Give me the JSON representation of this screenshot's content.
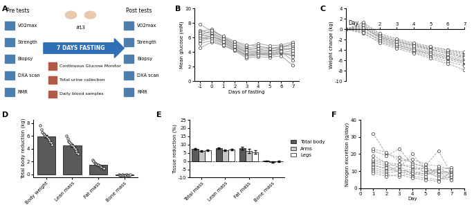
{
  "panel_a": {
    "label": "A",
    "pre_tests": {
      "title": "Pre tests",
      "items": [
        "VO2max",
        "Strength",
        "Biopsy",
        "DXA scan",
        "RMR"
      ]
    },
    "fasting": {
      "label": "7 DAYS FASTING",
      "participants": "#13",
      "measures": [
        "Continuous Glucose Monitor",
        "Total urine collection",
        "Daily blood samples"
      ]
    },
    "post_tests": {
      "title": "Post tests",
      "items": [
        "VO2max",
        "Strength",
        "Biopsy",
        "DXA scan",
        "RMR"
      ]
    }
  },
  "chart_data": [
    {
      "label": "B",
      "type": "line",
      "xlabel": "Days of fasting",
      "ylabel": "Mean glucose (mM)",
      "x": [
        -1,
        0,
        1,
        2,
        3,
        4,
        5,
        6,
        7
      ],
      "xlim": [
        -1.5,
        7.5
      ],
      "xticks": [
        -1,
        0,
        1,
        2,
        3,
        4,
        5,
        6,
        7
      ],
      "ylim": [
        0,
        10
      ],
      "yticks": [
        0,
        2,
        4,
        6,
        8,
        10
      ],
      "color": "#9a9a9a",
      "marker": "circle",
      "line_style": "solid",
      "series": [
        {
          "values": [
            7.0,
            6.6,
            5.9,
            5.2,
            4.6,
            4.8,
            4.6,
            4.5,
            5.3
          ]
        },
        {
          "values": [
            6.2,
            6.5,
            5.6,
            4.7,
            3.9,
            4.0,
            3.8,
            4.2,
            4.0
          ]
        },
        {
          "values": [
            5.5,
            6.0,
            5.3,
            4.6,
            3.5,
            3.7,
            3.5,
            3.8,
            3.6
          ]
        },
        {
          "values": [
            6.8,
            7.2,
            6.0,
            5.4,
            4.8,
            5.2,
            4.9,
            5.0,
            5.4
          ]
        },
        {
          "values": [
            4.6,
            5.4,
            4.9,
            4.2,
            3.2,
            3.4,
            3.3,
            3.5,
            2.2
          ]
        },
        {
          "values": [
            6.4,
            6.1,
            5.7,
            4.9,
            4.1,
            4.3,
            4.2,
            4.4,
            4.6
          ]
        },
        {
          "values": [
            5.9,
            6.3,
            5.4,
            4.5,
            3.7,
            3.9,
            3.6,
            3.9,
            3.8
          ]
        },
        {
          "values": [
            7.8,
            6.9,
            6.1,
            5.0,
            4.4,
            4.6,
            4.4,
            4.7,
            4.9
          ]
        },
        {
          "values": [
            6.0,
            5.8,
            5.2,
            4.4,
            3.6,
            3.8,
            3.7,
            4.0,
            2.9
          ]
        },
        {
          "values": [
            6.6,
            6.7,
            5.8,
            5.1,
            4.3,
            4.5,
            4.1,
            4.3,
            4.5
          ]
        },
        {
          "values": [
            5.2,
            5.6,
            5.0,
            4.3,
            3.4,
            3.6,
            3.9,
            4.1,
            3.4
          ]
        },
        {
          "values": [
            6.3,
            7.0,
            6.2,
            5.5,
            5.0,
            4.9,
            4.5,
            4.8,
            5.1
          ]
        },
        {
          "values": [
            5.7,
            6.2,
            5.5,
            4.8,
            4.0,
            4.1,
            4.0,
            4.6,
            4.2
          ]
        }
      ]
    },
    {
      "label": "C",
      "type": "line",
      "xlabel": "Day",
      "ylabel": "Weight change (kg)",
      "x": [
        0,
        1,
        2,
        3,
        4,
        5,
        6,
        7
      ],
      "xlim": [
        0,
        7
      ],
      "xticks": [
        1,
        2,
        3,
        4,
        5,
        6,
        7
      ],
      "ylim": [
        -10,
        4
      ],
      "yticks": [
        -10,
        -8,
        -6,
        -4,
        -2,
        0,
        2,
        4
      ],
      "color": "#9a9a9a",
      "marker": "circle",
      "line_style": "dashed",
      "series": [
        {
          "values": [
            0,
            1.2,
            -1.0,
            -2.0,
            -2.8,
            -3.4,
            -4.0,
            -4.6
          ]
        },
        {
          "values": [
            0,
            0.6,
            -1.6,
            -2.6,
            -3.3,
            -4.0,
            -4.6,
            -5.3
          ]
        },
        {
          "values": [
            0,
            -0.4,
            -2.0,
            -3.0,
            -3.8,
            -4.5,
            -5.2,
            -6.0
          ]
        },
        {
          "values": [
            0,
            0.2,
            -1.4,
            -2.4,
            -3.0,
            -3.6,
            -4.2,
            -4.8
          ]
        },
        {
          "values": [
            0,
            -0.8,
            -2.4,
            -3.4,
            -4.2,
            -5.0,
            -5.8,
            -6.6
          ]
        },
        {
          "values": [
            0,
            0.9,
            -1.2,
            -2.2,
            -3.0,
            -3.8,
            -4.4,
            -5.1
          ]
        },
        {
          "values": [
            0,
            -0.2,
            -1.9,
            -3.1,
            -4.0,
            -4.8,
            -5.6,
            -6.3
          ]
        },
        {
          "values": [
            0,
            1.4,
            -0.8,
            -1.8,
            -2.6,
            -3.3,
            -3.9,
            -4.4
          ]
        },
        {
          "values": [
            0,
            0.0,
            -2.2,
            -3.3,
            -4.4,
            -5.3,
            -6.2,
            -7.0
          ]
        },
        {
          "values": [
            0,
            0.4,
            -1.5,
            -2.7,
            -3.6,
            -4.3,
            -5.0,
            -5.7
          ]
        },
        {
          "values": [
            0,
            -0.6,
            -2.6,
            -3.7,
            -4.6,
            -5.6,
            -6.6,
            -7.8
          ]
        },
        {
          "values": [
            0,
            0.8,
            -1.3,
            -2.3,
            -3.2,
            -3.9,
            -4.7,
            -5.4
          ]
        },
        {
          "values": [
            0,
            0.3,
            -1.7,
            -2.9,
            -3.9,
            -4.7,
            -5.4,
            -6.2
          ]
        }
      ]
    },
    {
      "label": "D",
      "type": "bar",
      "ylabel": "Total body reduction (kg)",
      "categories": [
        "Body weight",
        "Lean mass",
        "Fat mass",
        "Bone mass"
      ],
      "values": [
        5.9,
        4.5,
        1.5,
        -0.09
      ],
      "errors": [
        0.25,
        0.25,
        0.1,
        0.01
      ],
      "points": [
        [
          7.6,
          7.0,
          6.6,
          6.4,
          6.2,
          6.0,
          5.9,
          5.8,
          5.6,
          5.4,
          5.1,
          4.9,
          4.6
        ],
        [
          6.0,
          5.6,
          5.2,
          5.0,
          4.8,
          4.6,
          4.5,
          4.4,
          4.2,
          4.0,
          3.6,
          3.3,
          3.2
        ],
        [
          2.3,
          2.0,
          1.8,
          1.7,
          1.6,
          1.5,
          1.5,
          1.4,
          1.3,
          1.2,
          1.1,
          1.0,
          1.0
        ],
        [
          -0.05,
          -0.1,
          -0.08,
          -0.12,
          -0.06,
          -0.1,
          -0.09,
          -0.11,
          -0.07,
          -0.1,
          -0.08,
          -0.13,
          -0.06
        ]
      ],
      "color": "#5a5a5a",
      "ylim": [
        -0.5,
        8.5
      ],
      "yticks": [
        0,
        2,
        4,
        6,
        8
      ]
    },
    {
      "label": "E",
      "type": "bar",
      "ylabel": "Tissue reduction (%)",
      "categories": [
        "Total mass",
        "Lean mass",
        "Fat mass",
        "Bone mass"
      ],
      "ylim": [
        -10,
        25
      ],
      "yticks": [
        -10,
        -5,
        0,
        5,
        10,
        15,
        20,
        25
      ],
      "legend": "center left",
      "series": [
        {
          "name": "Total body",
          "color": "#5a5a5a",
          "values": [
            7.3,
            7.8,
            7.9,
            0.1
          ],
          "errors": [
            0.4,
            0.5,
            0.8,
            0.3
          ]
        },
        {
          "name": "Arms",
          "color": "#c8c8c8",
          "values": [
            6.1,
            6.6,
            6.0,
            -0.4
          ],
          "errors": [
            0.5,
            0.5,
            1.2,
            0.4
          ]
        },
        {
          "name": "Legs",
          "color": "#ffffff",
          "values": [
            6.4,
            6.9,
            5.5,
            -0.3
          ],
          "errors": [
            0.4,
            0.4,
            1.0,
            0.4
          ]
        }
      ]
    },
    {
      "label": "F",
      "type": "line",
      "xlabel": "Day",
      "ylabel": "Nitrogen excretion (g/day)",
      "x": [
        1,
        2,
        3,
        4,
        5,
        6,
        7
      ],
      "xlim": [
        0,
        8
      ],
      "xticks": [
        0,
        1,
        2,
        3,
        4,
        5,
        6,
        7,
        8
      ],
      "ylim": [
        0,
        40
      ],
      "yticks": [
        0,
        10,
        20,
        30,
        40
      ],
      "color": "#9a9a9a",
      "marker": "circle",
      "line_style": "dashed",
      "series": [
        {
          "values": [
            32,
            20,
            18,
            15,
            12,
            10,
            9
          ]
        },
        {
          "values": [
            22,
            19,
            23,
            14,
            13,
            22,
            8
          ]
        },
        {
          "values": [
            19,
            15,
            12,
            20,
            11,
            9,
            10
          ]
        },
        {
          "values": [
            15,
            13,
            14,
            12,
            10,
            11,
            12
          ]
        },
        {
          "values": [
            14,
            11,
            10,
            11,
            12,
            9,
            8
          ]
        },
        {
          "values": [
            13,
            12,
            11,
            9,
            10,
            8,
            7
          ]
        },
        {
          "values": [
            12,
            10,
            13,
            8,
            9,
            7,
            6
          ]
        },
        {
          "values": [
            16,
            14,
            9,
            10,
            8,
            10,
            9
          ]
        },
        {
          "values": [
            11,
            9,
            10,
            7,
            6,
            5,
            7
          ]
        },
        {
          "values": [
            10,
            8,
            7,
            9,
            7,
            12,
            8
          ]
        },
        {
          "values": [
            17,
            15,
            14,
            13,
            11,
            6,
            5
          ]
        },
        {
          "values": [
            9,
            7,
            8,
            6,
            5,
            4,
            10
          ]
        },
        {
          "values": [
            23,
            21,
            16,
            17,
            14,
            13,
            11
          ]
        }
      ]
    }
  ]
}
